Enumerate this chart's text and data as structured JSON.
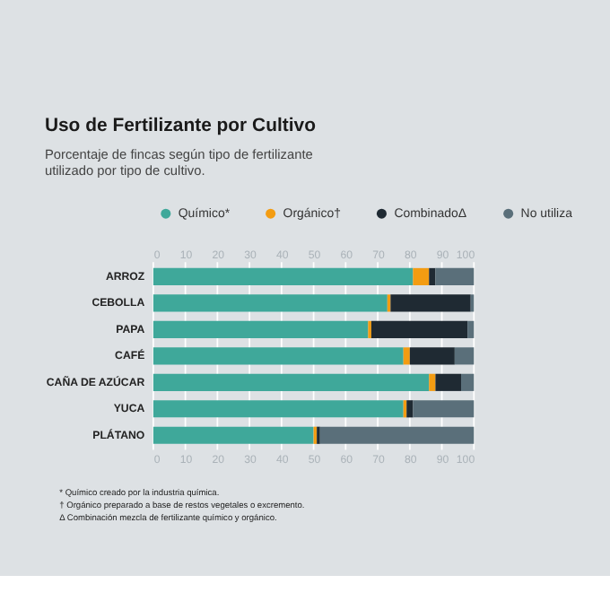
{
  "chart_data": {
    "type": "bar",
    "orientation": "horizontal",
    "stacked": true,
    "title": "Uso de Fertilizante por Cultivo",
    "subtitle": "Porcentaje de fincas según tipo de fertilizante utilizado por tipo de cultivo.",
    "categories": [
      "ARROZ",
      "CEBOLLA",
      "PAPA",
      "CAFÉ",
      "CAÑA DE AZÚCAR",
      "YUCA",
      "PLÁTANO"
    ],
    "series": [
      {
        "name": "Químico*",
        "color": "#3fa89a",
        "values": [
          81,
          73,
          67,
          78,
          86,
          78,
          50
        ]
      },
      {
        "name": "Orgánico†",
        "color": "#f39c12",
        "values": [
          5,
          1,
          1,
          2,
          2,
          1,
          1
        ]
      },
      {
        "name": "CombinadoΔ",
        "color": "#1f2a33",
        "values": [
          2,
          25,
          30,
          14,
          8,
          2,
          1
        ]
      },
      {
        "name": "No utiliza",
        "color": "#5a6f7a",
        "values": [
          12,
          1,
          2,
          6,
          4,
          19,
          48
        ]
      }
    ],
    "xlim": [
      0,
      100
    ],
    "xticks": [
      0,
      10,
      20,
      30,
      40,
      50,
      60,
      70,
      80,
      90,
      100
    ],
    "x2lim": [
      0,
      100
    ],
    "x2ticks": [
      0,
      10,
      20,
      30,
      40,
      50,
      60,
      70,
      80,
      90,
      100
    ],
    "grid": "x",
    "legend": "top",
    "annotations": [
      "* Químico creado por la industria química.",
      "† Orgánico preparado a base de restos vegetales o excremento.",
      "Δ Combinación mezcla de fertilizante químico y orgánico."
    ]
  }
}
